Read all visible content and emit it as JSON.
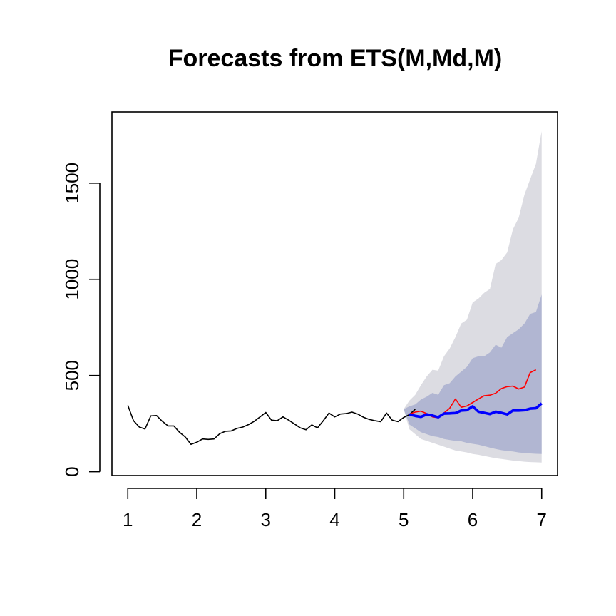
{
  "chart_data": {
    "type": "line",
    "title": "Forecasts from ETS(M,Md,M)",
    "xlabel": "",
    "ylabel": "",
    "xlim": [
      0.77,
      7.23
    ],
    "ylim": [
      -20,
      1870
    ],
    "x_ticks": [
      1,
      2,
      3,
      4,
      5,
      6,
      7
    ],
    "x_tick_labels": [
      "1",
      "2",
      "3",
      "4",
      "5",
      "6",
      "7"
    ],
    "y_ticks": [
      0,
      500,
      1000,
      1500
    ],
    "y_tick_labels": [
      "0",
      "500",
      "1000",
      "1500"
    ],
    "grid": false,
    "legend": "none",
    "period": 12,
    "colors": {
      "observed": "#000000",
      "forecast": "#0000ff",
      "actual": "#ff0000",
      "band80": "#b1b6d2",
      "band95": "#dcdce2"
    },
    "series": [
      {
        "role": "observed",
        "x_start": 1.0,
        "values": [
          345,
          265,
          232,
          222,
          290,
          292,
          262,
          238,
          238,
          205,
          180,
          142,
          153,
          170,
          168,
          170,
          198,
          210,
          212,
          225,
          232,
          245,
          262,
          285,
          308,
          268,
          265,
          285,
          268,
          248,
          228,
          218,
          243,
          228,
          265,
          305,
          285,
          300,
          302,
          310,
          300,
          283,
          272,
          265,
          260,
          305,
          268,
          260,
          282,
          297,
          325
        ]
      },
      {
        "role": "forecast",
        "x_start": 5.0833,
        "values": [
          298,
          290,
          285,
          298,
          292,
          283,
          302,
          303,
          305,
          318,
          320,
          340,
          312,
          306,
          300,
          312,
          306,
          298,
          318,
          318,
          320,
          328,
          330,
          355
        ]
      },
      {
        "role": "actual",
        "x_start": 5.0833,
        "values": [
          300,
          310,
          315,
          302,
          285,
          280,
          305,
          330,
          378,
          335,
          342,
          360,
          378,
          395,
          398,
          408,
          432,
          442,
          445,
          430,
          440,
          515,
          530
        ]
      }
    ],
    "intervals": [
      {
        "level": "80%",
        "x_start": 5.0,
        "lower": [
          325,
          245,
          225,
          205,
          195,
          185,
          180,
          170,
          165,
          160,
          158,
          150,
          145,
          140,
          133,
          125,
          118,
          112,
          108,
          105,
          100,
          97,
          95,
          93,
          92
        ],
        "upper": [
          325,
          340,
          350,
          375,
          390,
          410,
          400,
          450,
          460,
          495,
          520,
          545,
          590,
          600,
          600,
          620,
          660,
          645,
          700,
          720,
          740,
          770,
          820,
          830,
          920
        ]
      },
      {
        "level": "95%",
        "x_start": 5.0,
        "lower": [
          325,
          220,
          195,
          170,
          160,
          150,
          140,
          130,
          120,
          110,
          105,
          100,
          92,
          88,
          82,
          76,
          70,
          66,
          62,
          58,
          55,
          52,
          50,
          49,
          48
        ],
        "upper": [
          325,
          370,
          400,
          450,
          495,
          530,
          525,
          600,
          640,
          700,
          770,
          790,
          880,
          900,
          930,
          950,
          1080,
          1100,
          1140,
          1260,
          1320,
          1440,
          1520,
          1600,
          1770
        ]
      }
    ]
  }
}
